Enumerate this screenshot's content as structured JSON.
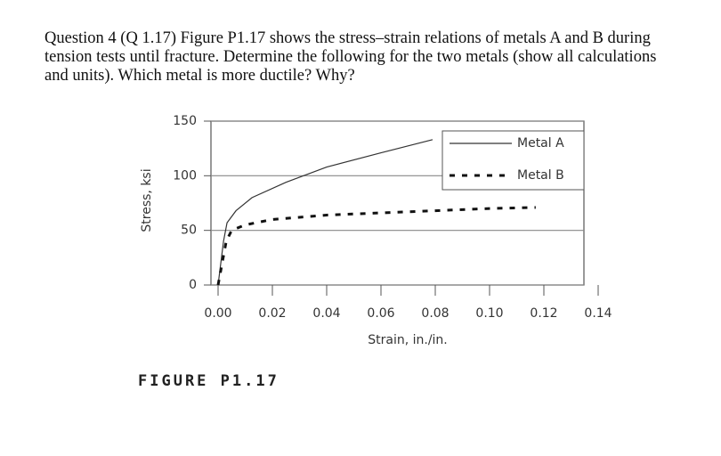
{
  "question": {
    "text": "Question 4   (Q 1.17) Figure P1.17 shows the stress–strain relations of metals A and B during tension tests until fracture. Determine the following for the two metals (show all calculations and units). Which metal is more ductile? Why?"
  },
  "chart_data": {
    "type": "line",
    "x_label": "Strain, in./in.",
    "y_label": "Stress, ksi",
    "series": [
      {
        "name": "Metal A",
        "color": "#333333",
        "dash": false,
        "x": [
          0,
          0.002,
          0.0033,
          0.0066,
          0.0125,
          0.025,
          0.04,
          0.06,
          0.079
        ],
        "values": [
          0,
          40,
          57,
          68,
          80,
          94,
          108,
          121,
          133
        ]
      },
      {
        "name": "Metal B",
        "color": "#111111",
        "dash": true,
        "x": [
          0,
          0.003,
          0.005,
          0.01,
          0.02,
          0.04,
          0.06,
          0.08,
          0.1,
          0.117
        ],
        "values": [
          0,
          40,
          50,
          55,
          60,
          64,
          66,
          68,
          70,
          71
        ]
      }
    ],
    "xlim": [
      0,
      0.14
    ],
    "ylim": [
      0,
      150
    ],
    "xticks": [
      {
        "value": 0,
        "label": "0.00"
      },
      0.02,
      0.04,
      0.06,
      0.08,
      {
        "value": 0.1,
        "label": "0.10"
      },
      0.12,
      0.14
    ],
    "yticks": [
      0,
      50,
      100,
      150
    ],
    "grid": true,
    "legend": "top-right"
  },
  "figure_caption": "FIGURE P1.17"
}
